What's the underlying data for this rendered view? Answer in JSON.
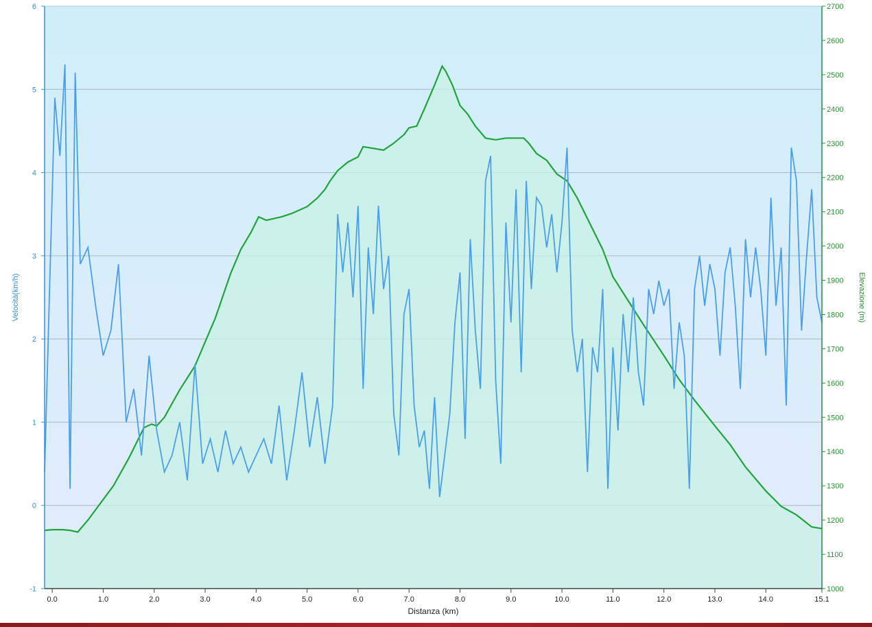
{
  "chart_data": {
    "type": "line",
    "title": "",
    "xlabel": "Distanza  (km)",
    "ylabel_left": "Velocità(km/h)",
    "ylabel_right": "Elevazione (m)",
    "x_range": [
      -0.15,
      15.1
    ],
    "xticks": [
      0.0,
      1.0,
      2.0,
      3.0,
      4.0,
      5.0,
      6.0,
      7.0,
      8.0,
      9.0,
      10.0,
      11.0,
      12.0,
      13.0,
      14.0,
      15.1
    ],
    "xtick_labels": [
      "0.0",
      "1.0",
      "2.0",
      "3.0",
      "4.0",
      "5.0",
      "6.0",
      "7.0",
      "8.0",
      "9.0",
      "10.0",
      "11.0",
      "12.0",
      "13.0",
      "14.0",
      "15.1"
    ],
    "ylim_left": [
      -1,
      6
    ],
    "yticks_left": [
      "-1",
      "0",
      "1",
      "2",
      "3",
      "4",
      "5",
      "6"
    ],
    "ylim_right": [
      1000,
      2700
    ],
    "yticks_right": [
      "1000",
      "1100",
      "1200",
      "1300",
      "1400",
      "1500",
      "1600",
      "1700",
      "1800",
      "1900",
      "2000",
      "2100",
      "2200",
      "2300",
      "2400",
      "2500",
      "2600",
      "2700"
    ],
    "grid": "horizontal",
    "colors": {
      "speed": "#4a9fea",
      "elevation": "#1fa43b",
      "elevation_fill": "#c8f2e4",
      "background_top": "#cfeefa",
      "background_bottom": "#e3ecfb",
      "axis_left": "#3b8fd0",
      "axis_right": "#2e8b3a",
      "gridline": "#a9b7c0"
    },
    "series": [
      {
        "axis": "right",
        "x": [
          -0.15,
          0.0,
          0.2,
          0.35,
          0.5,
          0.7,
          1.0,
          1.2,
          1.5,
          1.8,
          1.95,
          2.05,
          2.2,
          2.5,
          2.8,
          3.0,
          3.2,
          3.5,
          3.7,
          3.9,
          4.05,
          4.2,
          4.35,
          4.5,
          4.7,
          5.0,
          5.2,
          5.35,
          5.45,
          5.6,
          5.8,
          6.0,
          6.1,
          6.3,
          6.5,
          6.7,
          6.9,
          7.0,
          7.15,
          7.3,
          7.5,
          7.65,
          7.72,
          7.85,
          8.0,
          8.15,
          8.3,
          8.5,
          8.7,
          8.9,
          9.1,
          9.25,
          9.35,
          9.5,
          9.7,
          9.9,
          10.1,
          10.3,
          10.5,
          10.8,
          11.0,
          11.3,
          11.6,
          12.0,
          12.3,
          12.6,
          13.0,
          13.3,
          13.6,
          14.0,
          14.3,
          14.6,
          14.9,
          15.1
        ],
        "values": [
          1170,
          1172,
          1172,
          1170,
          1165,
          1200,
          1260,
          1300,
          1380,
          1470,
          1480,
          1475,
          1500,
          1580,
          1650,
          1720,
          1790,
          1920,
          1990,
          2040,
          2085,
          2075,
          2080,
          2085,
          2095,
          2115,
          2140,
          2165,
          2190,
          2220,
          2245,
          2260,
          2290,
          2285,
          2280,
          2300,
          2325,
          2345,
          2350,
          2400,
          2470,
          2525,
          2510,
          2470,
          2410,
          2385,
          2350,
          2315,
          2310,
          2315,
          2315,
          2315,
          2300,
          2270,
          2250,
          2210,
          2190,
          2140,
          2080,
          1990,
          1910,
          1840,
          1770,
          1680,
          1610,
          1550,
          1475,
          1420,
          1355,
          1285,
          1240,
          1215,
          1180,
          1175
        ]
      },
      {
        "axis": "left",
        "x": [
          -0.15,
          0.05,
          0.15,
          0.25,
          0.35,
          0.45,
          0.55,
          0.7,
          0.85,
          1.0,
          1.15,
          1.3,
          1.45,
          1.6,
          1.75,
          1.9,
          2.05,
          2.2,
          2.35,
          2.5,
          2.65,
          2.8,
          2.95,
          3.1,
          3.25,
          3.4,
          3.55,
          3.7,
          3.85,
          4.0,
          4.15,
          4.3,
          4.45,
          4.6,
          4.75,
          4.9,
          5.05,
          5.2,
          5.35,
          5.5,
          5.6,
          5.7,
          5.8,
          5.9,
          6.0,
          6.1,
          6.2,
          6.3,
          6.4,
          6.5,
          6.6,
          6.7,
          6.8,
          6.9,
          7.0,
          7.1,
          7.2,
          7.3,
          7.4,
          7.5,
          7.6,
          7.7,
          7.8,
          7.9,
          8.0,
          8.1,
          8.2,
          8.3,
          8.4,
          8.5,
          8.6,
          8.7,
          8.8,
          8.9,
          9.0,
          9.1,
          9.2,
          9.3,
          9.4,
          9.5,
          9.6,
          9.7,
          9.8,
          9.9,
          10.0,
          10.1,
          10.2,
          10.3,
          10.4,
          10.5,
          10.6,
          10.7,
          10.8,
          10.9,
          11.0,
          11.1,
          11.2,
          11.3,
          11.4,
          11.5,
          11.6,
          11.7,
          11.8,
          11.9,
          12.0,
          12.1,
          12.2,
          12.3,
          12.4,
          12.5,
          12.6,
          12.7,
          12.8,
          12.9,
          13.0,
          13.1,
          13.2,
          13.3,
          13.4,
          13.5,
          13.6,
          13.7,
          13.8,
          13.9,
          14.0,
          14.1,
          14.2,
          14.3,
          14.4,
          14.5,
          14.6,
          14.7,
          14.8,
          14.9,
          15.0,
          15.1
        ],
        "values": [
          0.4,
          4.9,
          4.2,
          5.3,
          0.2,
          5.2,
          2.9,
          3.1,
          2.4,
          1.8,
          2.1,
          2.9,
          1.0,
          1.4,
          0.6,
          1.8,
          0.9,
          0.4,
          0.6,
          1.0,
          0.3,
          1.7,
          0.5,
          0.8,
          0.4,
          0.9,
          0.5,
          0.7,
          0.4,
          0.6,
          0.8,
          0.5,
          1.2,
          0.3,
          0.9,
          1.6,
          0.7,
          1.3,
          0.5,
          1.2,
          3.5,
          2.8,
          3.4,
          2.5,
          3.6,
          1.4,
          3.1,
          2.3,
          3.6,
          2.6,
          3.0,
          1.1,
          0.6,
          2.3,
          2.6,
          1.2,
          0.7,
          0.9,
          0.2,
          1.3,
          0.1,
          0.6,
          1.1,
          2.2,
          2.8,
          0.8,
          3.2,
          2.1,
          1.4,
          3.9,
          4.2,
          1.5,
          0.5,
          3.4,
          2.2,
          3.8,
          1.6,
          3.9,
          2.6,
          3.7,
          3.6,
          3.1,
          3.5,
          2.8,
          3.4,
          4.3,
          2.1,
          1.6,
          2.0,
          0.4,
          1.9,
          1.6,
          2.6,
          0.2,
          1.9,
          0.9,
          2.3,
          1.6,
          2.5,
          1.6,
          1.2,
          2.6,
          2.3,
          2.7,
          2.4,
          2.6,
          1.4,
          2.2,
          1.8,
          0.2,
          2.6,
          3.0,
          2.4,
          2.9,
          2.6,
          1.8,
          2.8,
          3.1,
          2.4,
          1.4,
          3.2,
          2.5,
          3.1,
          2.6,
          1.8,
          3.7,
          2.4,
          3.1,
          1.2,
          4.3,
          3.9,
          2.1,
          3.0,
          3.8,
          2.5,
          2.2
        ]
      }
    ]
  }
}
